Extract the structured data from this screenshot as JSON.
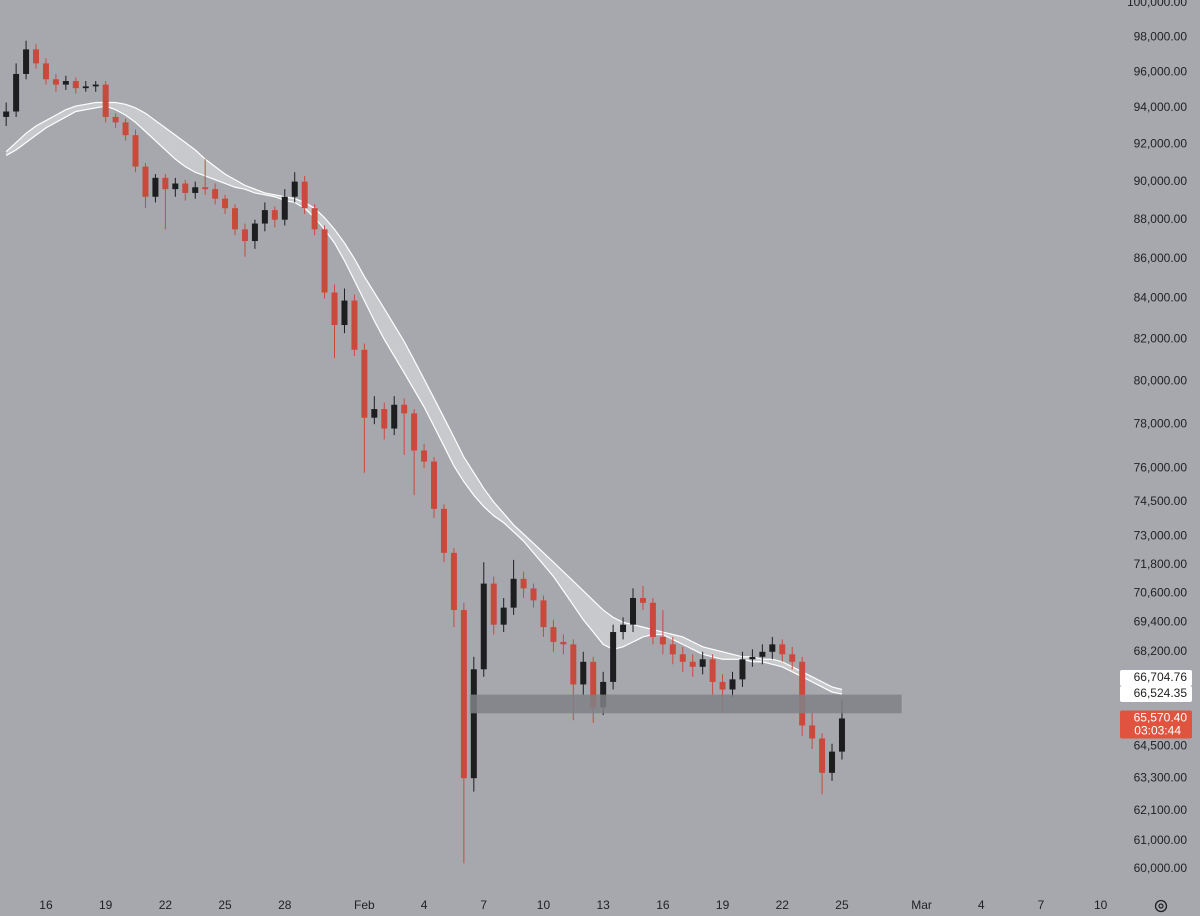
{
  "chart_data": {
    "type": "candlestick",
    "y_scale": "log",
    "xlim": [
      13.69,
      69.72
    ],
    "ylim": [
      59190,
      100177
    ],
    "xticks": [
      16,
      19,
      22,
      25,
      28,
      {
        "value": 32,
        "label": "Feb"
      },
      {
        "value": 35,
        "label": "4"
      },
      {
        "value": 38,
        "label": "7"
      },
      {
        "value": 41,
        "label": "10"
      },
      {
        "value": 44,
        "label": "13"
      },
      {
        "value": 47,
        "label": "16"
      },
      {
        "value": 50,
        "label": "19"
      },
      {
        "value": 53,
        "label": "22"
      },
      {
        "value": 56,
        "label": "25"
      },
      {
        "value": 60,
        "label": "Mar"
      },
      {
        "value": 63,
        "label": "4"
      },
      {
        "value": 66,
        "label": "7"
      },
      {
        "value": 69,
        "label": "10"
      }
    ],
    "yticks": [
      {
        "value": 100000,
        "label": "100,000.00"
      },
      {
        "value": 98000,
        "label": "98,000.00"
      },
      {
        "value": 96000,
        "label": "96,000.00"
      },
      {
        "value": 94000,
        "label": "94,000.00"
      },
      {
        "value": 92000,
        "label": "92,000.00"
      },
      {
        "value": 90000,
        "label": "90,000.00"
      },
      {
        "value": 88000,
        "label": "88,000.00"
      },
      {
        "value": 86000,
        "label": "86,000.00"
      },
      {
        "value": 84000,
        "label": "84,000.00"
      },
      {
        "value": 82000,
        "label": "82,000.00"
      },
      {
        "value": 80000,
        "label": "80,000.00"
      },
      {
        "value": 78000,
        "label": "78,000.00"
      },
      {
        "value": 76000,
        "label": "76,000.00"
      },
      {
        "value": 74500,
        "label": "74,500.00"
      },
      {
        "value": 73000,
        "label": "73,000.00"
      },
      {
        "value": 71800,
        "label": "71,800.00"
      },
      {
        "value": 70600,
        "label": "70,600.00"
      },
      {
        "value": 69400,
        "label": "69,400.00"
      },
      {
        "value": 68200,
        "label": "68,200.00"
      },
      {
        "value": 64500,
        "label": "64,500.00"
      },
      {
        "value": 63300,
        "label": "63,300.00"
      },
      {
        "value": 62100,
        "label": "62,100.00"
      },
      {
        "value": 61000,
        "label": "61,000.00"
      },
      {
        "value": 60000,
        "label": "60,000.00"
      }
    ],
    "up_color": "#1e1e20",
    "down_color": "#c94a3c",
    "ma_color": "#ffffff",
    "ma_fill": "rgba(255,255,255,0.38)",
    "candles": {
      "x": [
        14,
        14.5,
        15,
        15.5,
        16,
        16.5,
        17,
        17.5,
        18,
        18.5,
        19,
        19.5,
        20,
        20.5,
        21,
        21.5,
        22,
        22.5,
        23,
        23.5,
        24,
        24.5,
        25,
        25.5,
        26,
        26.5,
        27,
        27.5,
        28,
        28.5,
        29,
        29.5,
        30,
        30.5,
        31,
        31.5,
        32,
        32.5,
        33,
        33.5,
        34,
        34.5,
        35,
        35.5,
        36,
        36.5,
        37,
        37.5,
        38,
        38.5,
        39,
        39.5,
        40,
        40.5,
        41,
        41.5,
        42,
        42.5,
        43,
        43.5,
        44,
        44.5,
        45,
        45.5,
        46,
        46.5,
        47,
        47.5,
        48,
        48.5,
        49,
        49.5,
        50,
        50.5,
        51,
        51.5,
        52,
        52.5,
        53,
        53.5,
        54,
        54.5,
        55,
        55.5,
        56
      ],
      "open": [
        93500,
        93800,
        95900,
        97300,
        96500,
        95600,
        95300,
        95500,
        95100,
        95200,
        95300,
        93500,
        93200,
        92500,
        90800,
        89200,
        90200,
        89600,
        89900,
        89400,
        89700,
        89600,
        89100,
        88600,
        87500,
        86900,
        87800,
        88500,
        88000,
        89200,
        90000,
        88600,
        87500,
        84300,
        82700,
        83900,
        81500,
        78300,
        78700,
        77800,
        78900,
        78500,
        76800,
        76300,
        74200,
        72300,
        69900,
        63300,
        67500,
        71000,
        69300,
        70000,
        71200,
        70800,
        70300,
        69200,
        68600,
        68500,
        66900,
        67800,
        66000,
        67000,
        69000,
        69300,
        70400,
        70200,
        68800,
        68500,
        68100,
        67800,
        67600,
        67900,
        67000,
        66700,
        67100,
        67900,
        68000,
        68200,
        68500,
        68100,
        67800,
        65300,
        64800,
        63500,
        64300
      ],
      "high": [
        94300,
        96500,
        97800,
        97600,
        96800,
        95900,
        95800,
        95700,
        95500,
        95500,
        95500,
        93700,
        93400,
        92800,
        91000,
        90400,
        90400,
        90200,
        90100,
        90000,
        91200,
        89900,
        89300,
        88800,
        87800,
        88000,
        88900,
        88700,
        89600,
        90500,
        90300,
        88800,
        87700,
        84700,
        84500,
        84200,
        81800,
        79300,
        79000,
        79300,
        79200,
        78700,
        77100,
        76500,
        74400,
        72500,
        70200,
        68000,
        71900,
        71300,
        70400,
        72000,
        71500,
        71000,
        70500,
        69500,
        68900,
        68700,
        68200,
        68000,
        67400,
        69300,
        69600,
        70800,
        70900,
        70400,
        69900,
        68800,
        68400,
        68100,
        68200,
        68100,
        67300,
        67400,
        68200,
        68300,
        68500,
        68800,
        68700,
        68400,
        68000,
        65800,
        65000,
        64600,
        66300
      ],
      "low": [
        93000,
        93500,
        95600,
        96200,
        95300,
        94900,
        95000,
        94800,
        94900,
        94900,
        93200,
        92900,
        92200,
        90500,
        88600,
        88900,
        87500,
        89200,
        89000,
        89100,
        89300,
        88800,
        88300,
        87200,
        86100,
        86500,
        87400,
        87600,
        87700,
        88900,
        88300,
        87200,
        84000,
        81100,
        82300,
        81200,
        75800,
        78000,
        77300,
        77500,
        76600,
        74800,
        76000,
        73800,
        71900,
        69200,
        60200,
        62800,
        67200,
        68900,
        69000,
        69700,
        70400,
        70000,
        68800,
        68200,
        68100,
        65500,
        66500,
        65400,
        65700,
        66700,
        68700,
        69000,
        69900,
        68500,
        68100,
        67700,
        67400,
        67200,
        67300,
        66500,
        65800,
        66400,
        66800,
        67600,
        67700,
        67900,
        67800,
        67500,
        64900,
        64400,
        62700,
        63200,
        64000
      ],
      "close": [
        93800,
        95900,
        97300,
        96500,
        95600,
        95300,
        95500,
        95100,
        95200,
        95300,
        93500,
        93200,
        92500,
        90800,
        89200,
        90200,
        89600,
        89900,
        89400,
        89700,
        89600,
        89100,
        88600,
        87500,
        86900,
        87800,
        88500,
        88000,
        89200,
        90000,
        88600,
        87500,
        84300,
        82700,
        83900,
        81500,
        78300,
        78700,
        77800,
        78900,
        78500,
        76800,
        76300,
        74200,
        72300,
        69900,
        63300,
        67500,
        71000,
        69300,
        70000,
        71200,
        70800,
        70300,
        69200,
        68600,
        68500,
        66900,
        67800,
        66000,
        67000,
        69000,
        69300,
        70400,
        70200,
        68800,
        68500,
        68100,
        67800,
        67600,
        67900,
        67000,
        66700,
        67100,
        67900,
        68000,
        68200,
        68500,
        68100,
        67800,
        65300,
        64800,
        63500,
        64300,
        65570.4
      ]
    },
    "ma": {
      "upper": [
        91600,
        92100,
        92600,
        93000,
        93300,
        93600,
        93900,
        94100,
        94200,
        94300,
        94300,
        94300,
        94200,
        94000,
        93700,
        93300,
        92900,
        92500,
        92100,
        91700,
        91200,
        90800,
        90400,
        90100,
        89800,
        89600,
        89400,
        89300,
        89200,
        89100,
        88900,
        88600,
        88100,
        87500,
        86800,
        86000,
        85100,
        84300,
        83500,
        82700,
        81900,
        81000,
        80100,
        79200,
        78300,
        77400,
        76500,
        75800,
        75100,
        74500,
        74000,
        73500,
        73100,
        72700,
        72300,
        71900,
        71500,
        71100,
        70700,
        70300,
        69900,
        69600,
        69400,
        69300,
        69200,
        69100,
        69000,
        68900,
        68800,
        68600,
        68400,
        68300,
        68200,
        68100,
        68000,
        68000,
        67900,
        67900,
        67800,
        67600,
        67400,
        67200,
        67000,
        66800,
        66700
      ],
      "lower": [
        91400,
        91700,
        92100,
        92500,
        92900,
        93200,
        93500,
        93800,
        93900,
        94000,
        94100,
        93900,
        93600,
        93200,
        92700,
        92200,
        91700,
        91200,
        90800,
        90500,
        90300,
        90100,
        89900,
        89700,
        89600,
        89400,
        89300,
        89200,
        89000,
        88900,
        88600,
        88100,
        87500,
        86800,
        85900,
        84900,
        83900,
        82900,
        82000,
        81200,
        80400,
        79600,
        78800,
        77900,
        77000,
        76100,
        75400,
        74800,
        74300,
        73900,
        73600,
        73200,
        72800,
        72300,
        71800,
        71300,
        70700,
        70100,
        69500,
        69000,
        68500,
        68300,
        68400,
        68600,
        68800,
        68900,
        68900,
        68700,
        68500,
        68300,
        68100,
        68000,
        67900,
        67900,
        67900,
        67800,
        67800,
        67700,
        67600,
        67400,
        67200,
        67000,
        66800,
        66600,
        66520
      ]
    },
    "zone": {
      "xlim": [
        37.3,
        59.0
      ],
      "ylim": [
        65770,
        66500
      ],
      "color": "rgba(128,129,134,0.85)"
    },
    "price_markers": [
      {
        "value": 66704.76,
        "label": "66,704.76",
        "color": "#ffffff",
        "text_color": "#1e1e20"
      },
      {
        "value": 66524.35,
        "label": "66,524.35",
        "color": "#ffffff",
        "text_color": "#1e1e20"
      },
      {
        "value": 65570.4,
        "label": "65,570.40",
        "color": "#e0533f",
        "text_color": "#ffffff"
      }
    ],
    "countdown": "03:03:44"
  }
}
